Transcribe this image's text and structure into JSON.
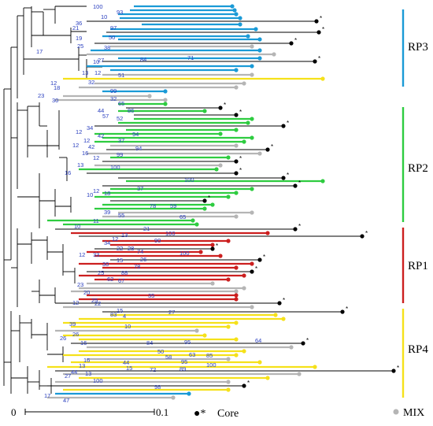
{
  "clades": [
    {
      "name": "RP3",
      "color": "#1a9ad6"
    },
    {
      "name": "RP2",
      "color": "#2ecc40"
    },
    {
      "name": "RP1",
      "color": "#cc1f1f"
    },
    {
      "name": "RP4",
      "color": "#f5e11a"
    }
  ],
  "scale_bar": {
    "start_label": "0",
    "end_label": "0.1"
  },
  "legend": {
    "core": {
      "symbol": "●*",
      "label": "Core",
      "color": "#000000"
    },
    "mix": {
      "symbol": "●",
      "label": "MIX",
      "color": "#a8a8a8"
    }
  },
  "colors": {
    "grey": "#b5b5b5",
    "backbone": "#000000",
    "bootstrap": "#2a3fbf"
  },
  "bootstrap_labels": [
    "100",
    "93",
    "10",
    "36",
    "97",
    "21",
    "50",
    "19",
    "25",
    "38",
    "17",
    "27",
    "84",
    "71",
    "10",
    "13",
    "12",
    "51",
    "12",
    "32",
    "18",
    "23",
    "32",
    "30",
    "99",
    "65",
    "44",
    "86",
    "57",
    "52",
    "34",
    "12",
    "94",
    "42",
    "12",
    "37",
    "12",
    "42",
    "94",
    "16",
    "99",
    "12",
    "100",
    "13",
    "100",
    "16",
    "37",
    "12",
    "18",
    "10",
    "78",
    "59",
    "39",
    "55",
    "65",
    "11",
    "10",
    "21",
    "13",
    "100",
    "12",
    "34",
    "22",
    "28",
    "90",
    "12",
    "33",
    "74",
    "100",
    "26",
    "30",
    "15",
    "78",
    "25",
    "88",
    "67",
    "62",
    "23",
    "20",
    "35",
    "25",
    "12",
    "22",
    "15",
    "4",
    "27",
    "83",
    "39",
    "10",
    "26",
    "26",
    "16",
    "84",
    "95",
    "64",
    "16",
    "50",
    "58",
    "63",
    "85",
    "13",
    "44",
    "95",
    "100",
    "15",
    "72",
    "89",
    "44",
    "27",
    "13",
    "100",
    "98",
    "17",
    "47"
  ]
}
